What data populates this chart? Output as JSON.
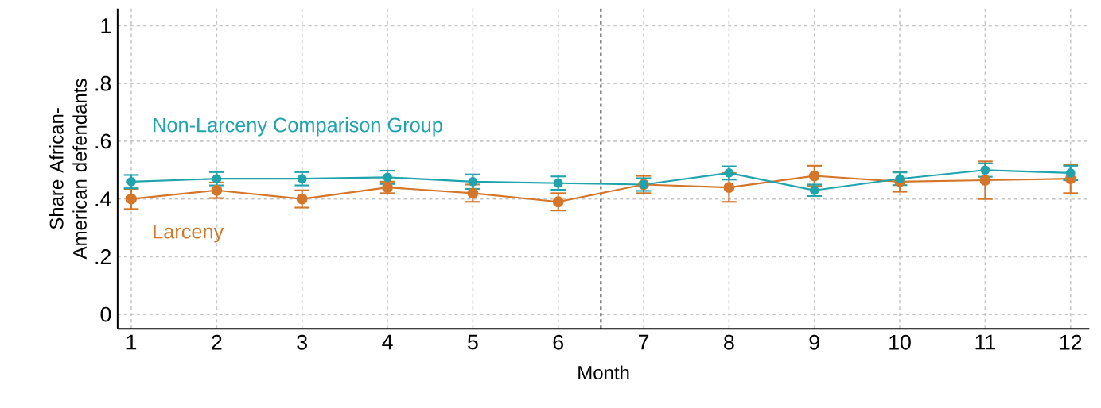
{
  "chart_data": {
    "type": "line",
    "xlabel": "Month",
    "ylabel": "Share African-American defendants",
    "x": [
      1,
      2,
      3,
      4,
      5,
      6,
      7,
      8,
      9,
      10,
      11,
      12
    ],
    "series": [
      {
        "name": "Non-Larceny Comparison Group",
        "color": "#1fa3ad",
        "values": [
          0.46,
          0.47,
          0.47,
          0.475,
          0.46,
          0.455,
          0.45,
          0.49,
          0.43,
          0.47,
          0.5,
          0.49
        ],
        "errors": [
          0.023,
          0.023,
          0.023,
          0.023,
          0.025,
          0.023,
          0.022,
          0.023,
          0.02,
          0.022,
          0.023,
          0.025
        ]
      },
      {
        "name": "Larceny",
        "color": "#d4762a",
        "values": [
          0.4,
          0.43,
          0.4,
          0.44,
          0.42,
          0.39,
          0.45,
          0.44,
          0.48,
          0.46,
          0.465,
          0.47
        ],
        "errors": [
          0.035,
          0.027,
          0.03,
          0.02,
          0.03,
          0.03,
          0.03,
          0.05,
          0.035,
          0.035,
          0.065,
          0.05
        ]
      }
    ],
    "xlim": [
      0.84,
      12.22
    ],
    "ylim": [
      -0.05,
      1.06
    ],
    "xticks": [
      1,
      2,
      3,
      4,
      5,
      6,
      7,
      8,
      9,
      10,
      11,
      12
    ],
    "yticks": [
      0,
      {
        "value": 0.2,
        "label": ".2"
      },
      {
        "value": 0.4,
        "label": ".4"
      },
      {
        "value": 0.6,
        "label": ".6"
      },
      {
        "value": 0.8,
        "label": ".8"
      },
      1
    ],
    "ref_lines": [
      {
        "axis": "x",
        "value": 6.5,
        "color": "#000000",
        "line_style": "dashed"
      }
    ],
    "grid": true,
    "marker": "circle",
    "line_style": "solid"
  }
}
